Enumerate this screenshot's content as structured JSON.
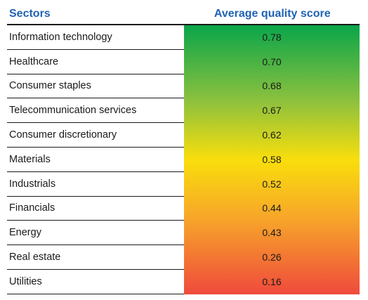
{
  "header": {
    "sectors_label": "Sectors",
    "score_label": "Average quality score"
  },
  "colors": {
    "header_text": "#1f62b4",
    "gradient_top": "#0aa54a",
    "gradient_mid": "#f9de0c",
    "gradient_bottom": "#ef4a3c"
  },
  "chart_data": {
    "type": "table",
    "columns": [
      "Sectors",
      "Average quality score"
    ],
    "categories": [
      "Information technology",
      "Healthcare",
      "Consumer staples",
      "Telecommunication services",
      "Consumer discretionary",
      "Materials",
      "Industrials",
      "Financials",
      "Energy",
      "Real estate",
      "Utilities"
    ],
    "values": [
      "0.78",
      "0.70",
      "0.68",
      "0.67",
      "0.62",
      "0.58",
      "0.52",
      "0.44",
      "0.43",
      "0.26",
      "0.16"
    ]
  }
}
